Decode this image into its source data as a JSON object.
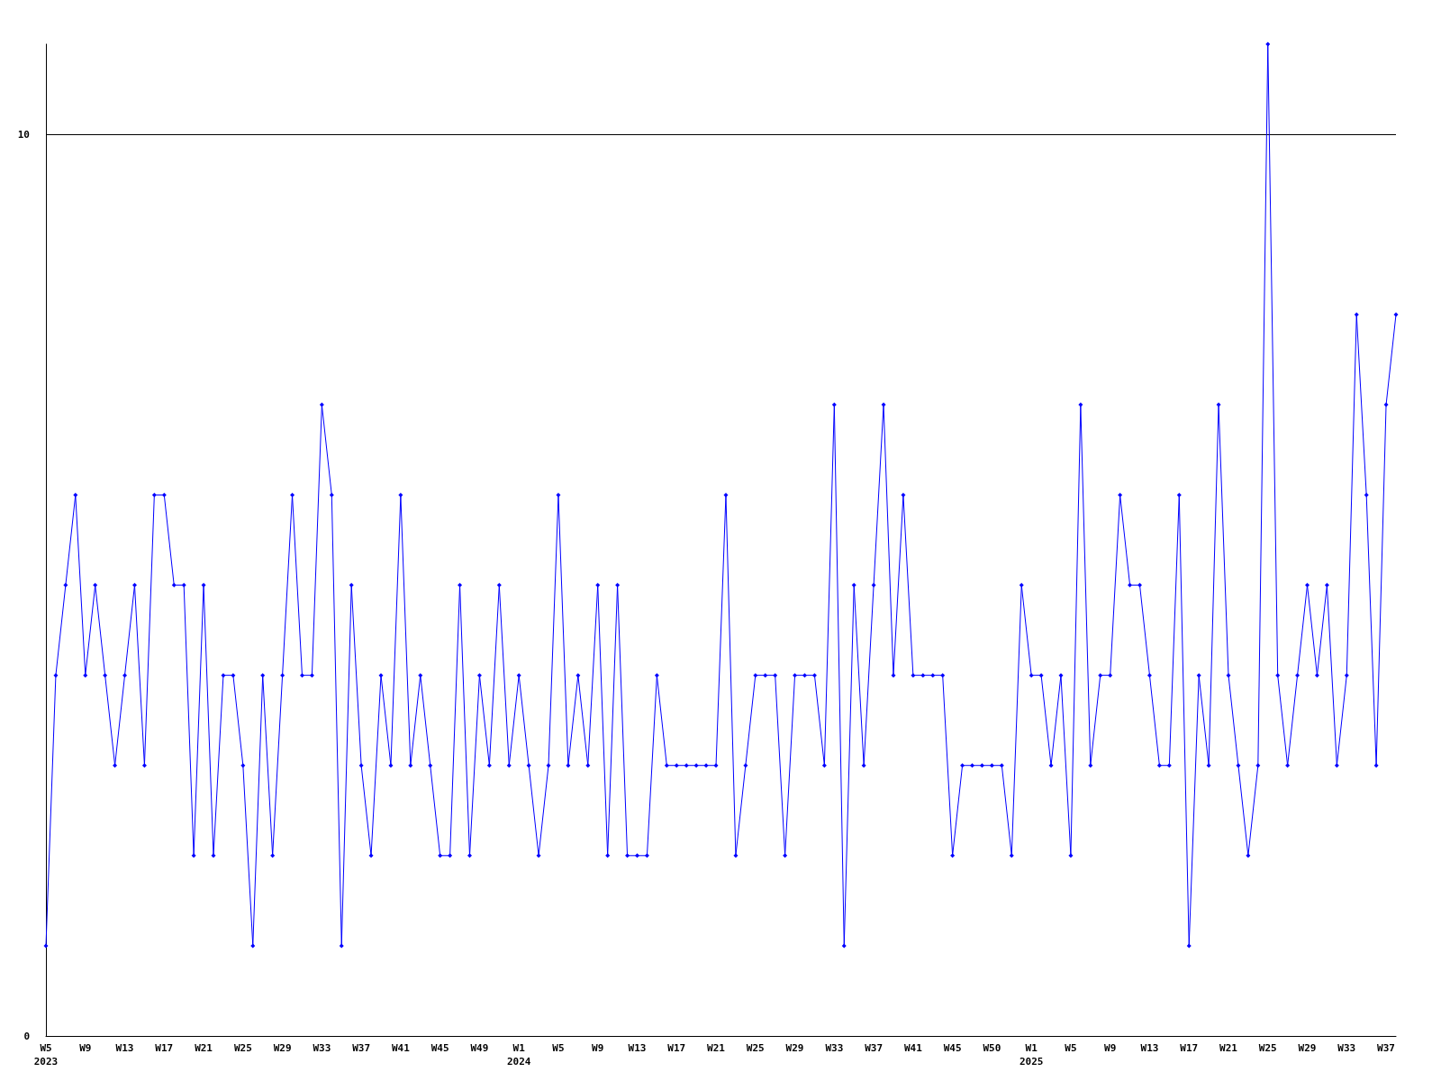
{
  "chart_data": {
    "type": "line",
    "categories": [
      "W5\n2023",
      null,
      null,
      null,
      "W9",
      null,
      null,
      null,
      "W13",
      null,
      null,
      null,
      "W17",
      null,
      null,
      null,
      "W21",
      null,
      null,
      null,
      "W25",
      null,
      null,
      null,
      "W29",
      null,
      null,
      null,
      "W33",
      null,
      null,
      null,
      "W37",
      null,
      null,
      null,
      "W41",
      null,
      null,
      null,
      "W45",
      null,
      null,
      null,
      "W49",
      null,
      null,
      null,
      "W1\n2024",
      null,
      null,
      null,
      "W5",
      null,
      null,
      null,
      "W9",
      null,
      null,
      null,
      "W13",
      null,
      null,
      null,
      "W17",
      null,
      null,
      null,
      "W21",
      null,
      null,
      null,
      "W25",
      null,
      null,
      null,
      "W29",
      null,
      null,
      null,
      "W33",
      null,
      null,
      null,
      "W37",
      null,
      null,
      null,
      "W41",
      null,
      null,
      null,
      "W45",
      null,
      null,
      null,
      "W50",
      null,
      null,
      null,
      "W1\n2025",
      null,
      null,
      null,
      "W5",
      null,
      null,
      null,
      "W9",
      null,
      null,
      null,
      "W13",
      null,
      null,
      null,
      "W17",
      null,
      null,
      null,
      "W21",
      null,
      null,
      null,
      "W25",
      null,
      null,
      null,
      "W29",
      null,
      null,
      null,
      "W33",
      null,
      null,
      null,
      "W37",
      null
    ],
    "series": [
      {
        "color": "#0000ff",
        "values": [
          1,
          4,
          5,
          6,
          4,
          5,
          4,
          3,
          4,
          5,
          3,
          6,
          6,
          5,
          5,
          2,
          5,
          2,
          4,
          4,
          3,
          1,
          4,
          2,
          4,
          6,
          4,
          4,
          7,
          6,
          1,
          5,
          3,
          2,
          4,
          3,
          6,
          3,
          4,
          3,
          2,
          2,
          5,
          2,
          4,
          3,
          5,
          3,
          4,
          3,
          2,
          3,
          6,
          3,
          4,
          3,
          5,
          2,
          5,
          2,
          2,
          2,
          4,
          3,
          3,
          3,
          3,
          3,
          3,
          6,
          2,
          3,
          4,
          4,
          4,
          2,
          4,
          4,
          4,
          3,
          7,
          1,
          5,
          3,
          5,
          7,
          4,
          6,
          4,
          4,
          4,
          4,
          2,
          3,
          3,
          3,
          3,
          3,
          2,
          5,
          4,
          4,
          3,
          4,
          2,
          7,
          3,
          4,
          4,
          6,
          5,
          5,
          4,
          3,
          3,
          6,
          1,
          4,
          3,
          7,
          4,
          3,
          2,
          3,
          11,
          4,
          3,
          4,
          5,
          4,
          5,
          3,
          4,
          8,
          6,
          3,
          7,
          8
        ]
      }
    ],
    "ylim": [
      0,
      11
    ],
    "yticks": [
      0,
      10
    ],
    "grid": "y",
    "marker": "diamond",
    "line_style": "solid"
  }
}
